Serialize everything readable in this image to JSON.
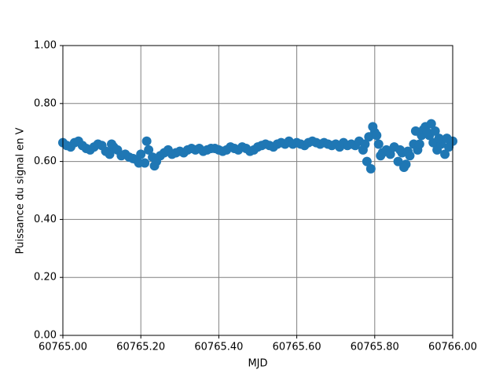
{
  "chart_data": {
    "type": "scatter",
    "x_label": "MJD",
    "y_label": "Puissance du signal en V",
    "color": "#1f77b4",
    "grid": true,
    "xlim": [
      60765.0,
      60766.0
    ],
    "ylim": [
      0.0,
      1.0
    ],
    "xticks": [
      {
        "value": 60765.0,
        "label": "60765.00"
      },
      {
        "value": 60765.2,
        "label": "60765.20"
      },
      {
        "value": 60765.4,
        "label": "60765.40"
      },
      {
        "value": 60765.6,
        "label": "60765.60"
      },
      {
        "value": 60765.8,
        "label": "60765.80"
      },
      {
        "value": 60766.0,
        "label": "60766.00"
      }
    ],
    "yticks": [
      {
        "value": 0.0,
        "label": "0.00"
      },
      {
        "value": 0.2,
        "label": "0.20"
      },
      {
        "value": 0.4,
        "label": "0.40"
      },
      {
        "value": 0.6,
        "label": "0.60"
      },
      {
        "value": 0.8,
        "label": "0.80"
      },
      {
        "value": 1.0,
        "label": "1.00"
      }
    ],
    "x": [
      60765.0,
      60765.01,
      60765.02,
      60765.03,
      60765.04,
      60765.05,
      60765.06,
      60765.07,
      60765.08,
      60765.09,
      60765.1,
      60765.11,
      60765.12,
      60765.13,
      60765.14,
      60765.15,
      60765.16,
      60765.17,
      60765.18,
      60765.19,
      60765.2,
      60765.21,
      60765.22,
      60765.23,
      60765.24,
      60765.25,
      60765.26,
      60765.27,
      60765.28,
      60765.29,
      60765.3,
      60765.31,
      60765.32,
      60765.33,
      60765.34,
      60765.35,
      60765.36,
      60765.37,
      60765.38,
      60765.39,
      60765.4,
      60765.41,
      60765.42,
      60765.43,
      60765.44,
      60765.45,
      60765.46,
      60765.47,
      60765.48,
      60765.49,
      60765.5,
      60765.51,
      60765.52,
      60765.53,
      60765.54,
      60765.55,
      60765.56,
      60765.57,
      60765.58,
      60765.59,
      60765.6,
      60765.61,
      60765.62,
      60765.63,
      60765.64,
      60765.65,
      60765.66,
      60765.67,
      60765.68,
      60765.69,
      60765.7,
      60765.71,
      60765.72,
      60765.73,
      60765.74,
      60765.75,
      60765.76,
      60765.77,
      60765.78,
      60765.79,
      60765.8,
      60765.81,
      60765.82,
      60765.83,
      60765.84,
      60765.85,
      60765.86,
      60765.87,
      60765.88,
      60765.89,
      60765.9,
      60765.91,
      60765.92,
      60765.93,
      60765.94,
      60765.95,
      60765.96,
      60765.97,
      60765.98,
      60765.99,
      60766.0,
      60765.775,
      60765.785,
      60765.795,
      60765.805,
      60765.815,
      60765.865,
      60765.875,
      60765.885,
      60765.905,
      60765.915,
      60765.925,
      60765.935,
      60765.945,
      60765.955,
      60765.965,
      60765.985,
      60765.215,
      60765.235,
      60765.125,
      60765.195
    ],
    "values": [
      0.665,
      0.655,
      0.65,
      0.665,
      0.67,
      0.655,
      0.645,
      0.64,
      0.65,
      0.66,
      0.655,
      0.635,
      0.625,
      0.65,
      0.64,
      0.62,
      0.625,
      0.615,
      0.61,
      0.605,
      0.625,
      0.595,
      0.64,
      0.615,
      0.6,
      0.62,
      0.63,
      0.64,
      0.625,
      0.63,
      0.635,
      0.63,
      0.64,
      0.645,
      0.64,
      0.645,
      0.635,
      0.64,
      0.645,
      0.645,
      0.64,
      0.635,
      0.64,
      0.65,
      0.645,
      0.64,
      0.65,
      0.645,
      0.635,
      0.64,
      0.65,
      0.655,
      0.66,
      0.655,
      0.65,
      0.66,
      0.665,
      0.66,
      0.67,
      0.66,
      0.665,
      0.66,
      0.655,
      0.665,
      0.67,
      0.665,
      0.66,
      0.665,
      0.66,
      0.655,
      0.66,
      0.65,
      0.665,
      0.655,
      0.66,
      0.655,
      0.67,
      0.64,
      0.6,
      0.575,
      0.7,
      0.66,
      0.63,
      0.64,
      0.625,
      0.65,
      0.6,
      0.63,
      0.59,
      0.62,
      0.66,
      0.64,
      0.69,
      0.72,
      0.69,
      0.665,
      0.64,
      0.66,
      0.625,
      0.65,
      0.67,
      0.66,
      0.685,
      0.72,
      0.69,
      0.62,
      0.64,
      0.58,
      0.635,
      0.705,
      0.66,
      0.71,
      0.7,
      0.73,
      0.705,
      0.68,
      0.68,
      0.67,
      0.585,
      0.66,
      0.595
    ]
  }
}
